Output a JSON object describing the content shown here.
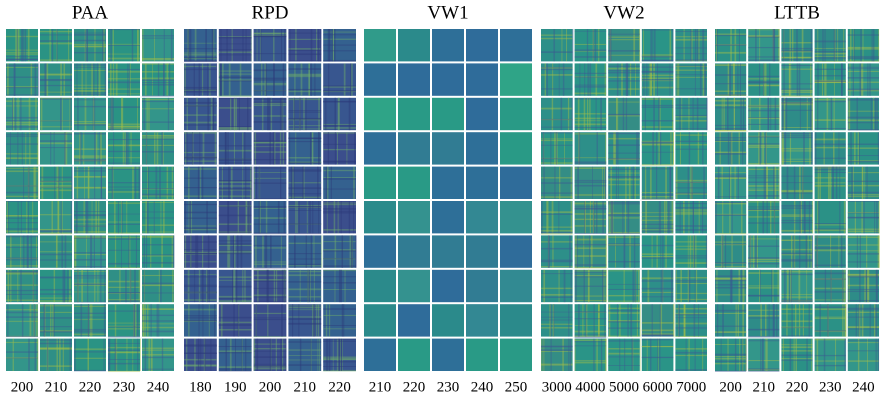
{
  "panels": [
    {
      "title": "PAA",
      "labels": [
        200,
        210,
        220,
        230,
        240
      ]
    },
    {
      "title": "RPD",
      "labels": [
        180,
        190,
        200,
        210,
        220
      ]
    },
    {
      "title": "VW1",
      "labels": [
        210,
        220,
        230,
        240,
        250
      ]
    },
    {
      "title": "VW2",
      "labels": [
        3000,
        4000,
        5000,
        6000,
        7000
      ]
    },
    {
      "title": "LTTB",
      "labels": [
        200,
        210,
        220,
        230,
        240
      ]
    }
  ]
}
